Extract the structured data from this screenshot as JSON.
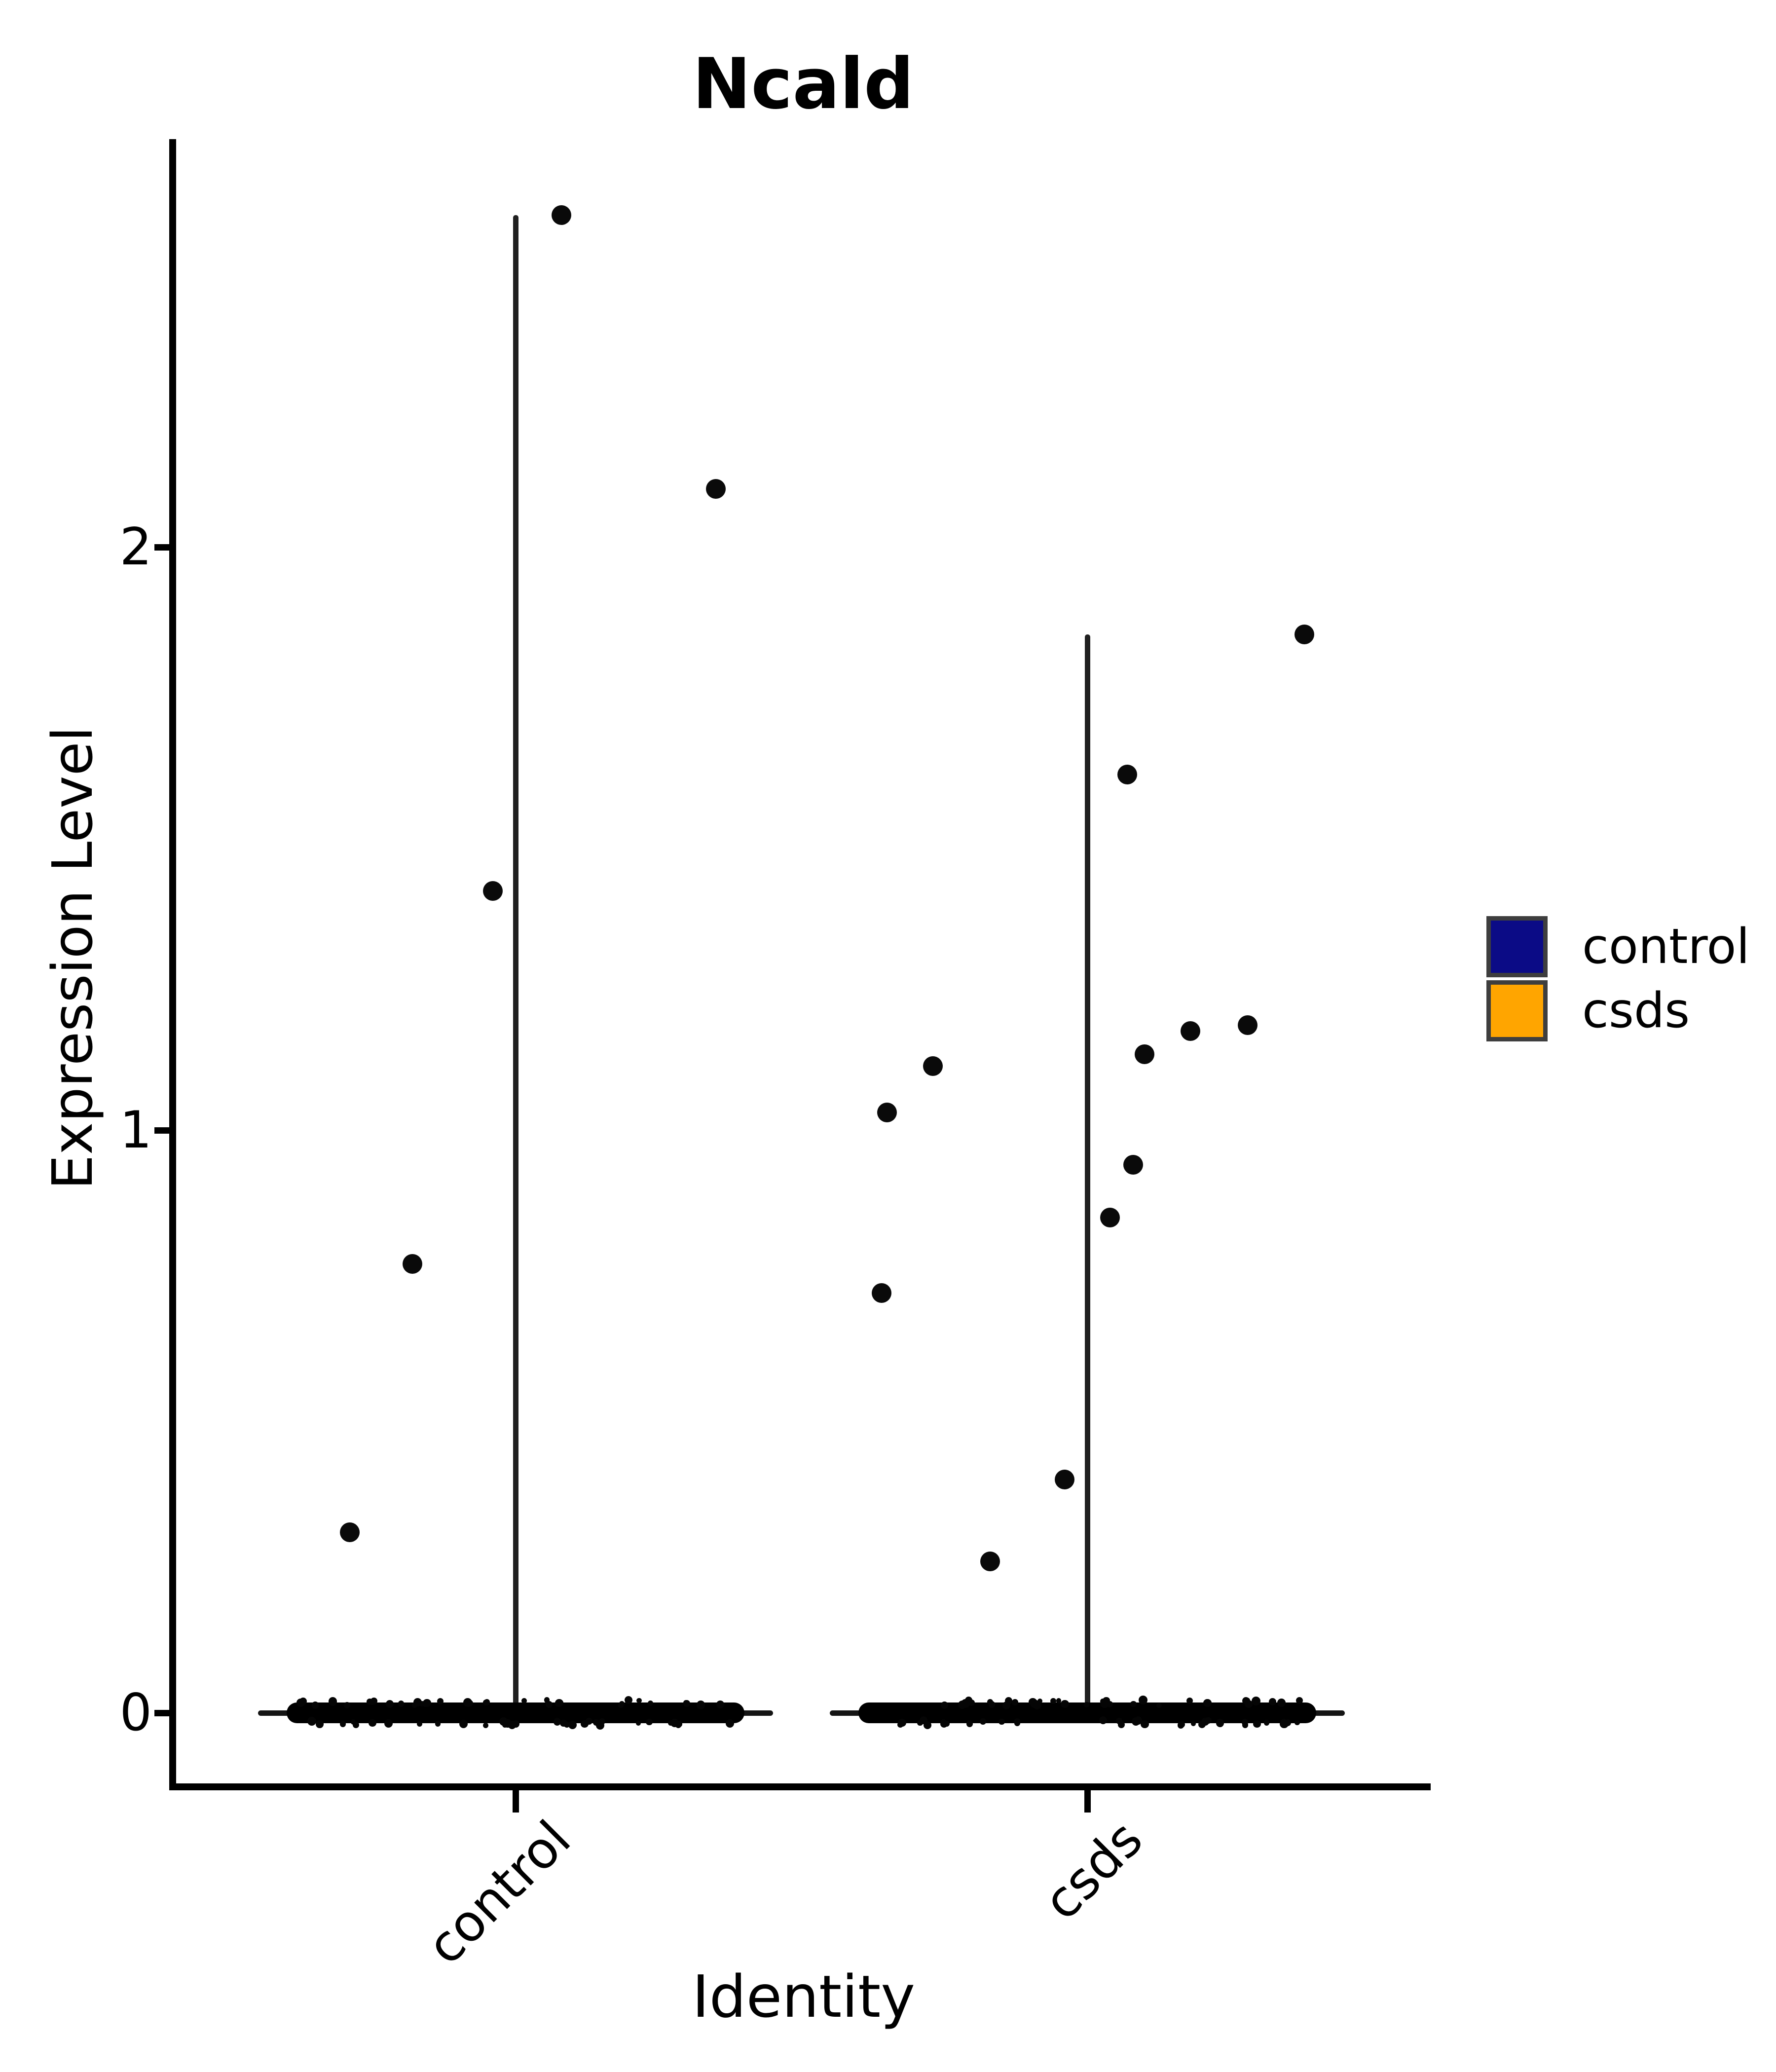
{
  "title": "Ncald",
  "y_axis": {
    "label": "Expression Level",
    "tick_labels": [
      "0",
      "1",
      "2"
    ]
  },
  "x_axis": {
    "label": "Identity",
    "tick_labels": [
      "control",
      "csds"
    ]
  },
  "legend": {
    "position": "right",
    "items": [
      {
        "label": "control",
        "color": "#0b0b86"
      },
      {
        "label": "csds",
        "color": "#ffa500"
      }
    ]
  },
  "chart_data": {
    "type": "violin",
    "title": "Ncald",
    "xlabel": "Identity",
    "ylabel": "Expression Level",
    "categories": [
      "control",
      "csds"
    ],
    "yticks": [
      0,
      1,
      2
    ],
    "ylim": [
      -0.13,
      2.7
    ],
    "grid": false,
    "legend_position": "right",
    "point_color": "#0a0a0a",
    "outline_color": "#202020",
    "description": "Violins are collapsed: nearly all cells have expression 0, forming a dense black jitter band at y=0 for both groups; each violin renders as a horizontal lens at 0 plus a thin vertical spike up to the group maximum.",
    "series": [
      {
        "name": "control",
        "violin_max": 2.57,
        "zero_mass_band": true,
        "nonzero_points": [
          {
            "v": 2.57,
            "j": 0.08
          },
          {
            "v": 2.1,
            "j": 0.35
          },
          {
            "v": 1.41,
            "j": -0.04
          },
          {
            "v": 0.77,
            "j": -0.18
          },
          {
            "v": 0.31,
            "j": -0.29
          }
        ]
      },
      {
        "name": "csds",
        "violin_max": 1.85,
        "zero_mass_band": true,
        "nonzero_points": [
          {
            "v": 1.85,
            "j": 0.38
          },
          {
            "v": 1.61,
            "j": 0.07
          },
          {
            "v": 1.18,
            "j": 0.28
          },
          {
            "v": 1.17,
            "j": 0.18
          },
          {
            "v": 1.13,
            "j": 0.1
          },
          {
            "v": 1.11,
            "j": -0.27
          },
          {
            "v": 1.03,
            "j": -0.35
          },
          {
            "v": 0.94,
            "j": 0.08
          },
          {
            "v": 0.85,
            "j": 0.04
          },
          {
            "v": 0.72,
            "j": -0.36
          },
          {
            "v": 0.4,
            "j": -0.04
          },
          {
            "v": 0.26,
            "j": -0.17
          }
        ]
      }
    ]
  }
}
